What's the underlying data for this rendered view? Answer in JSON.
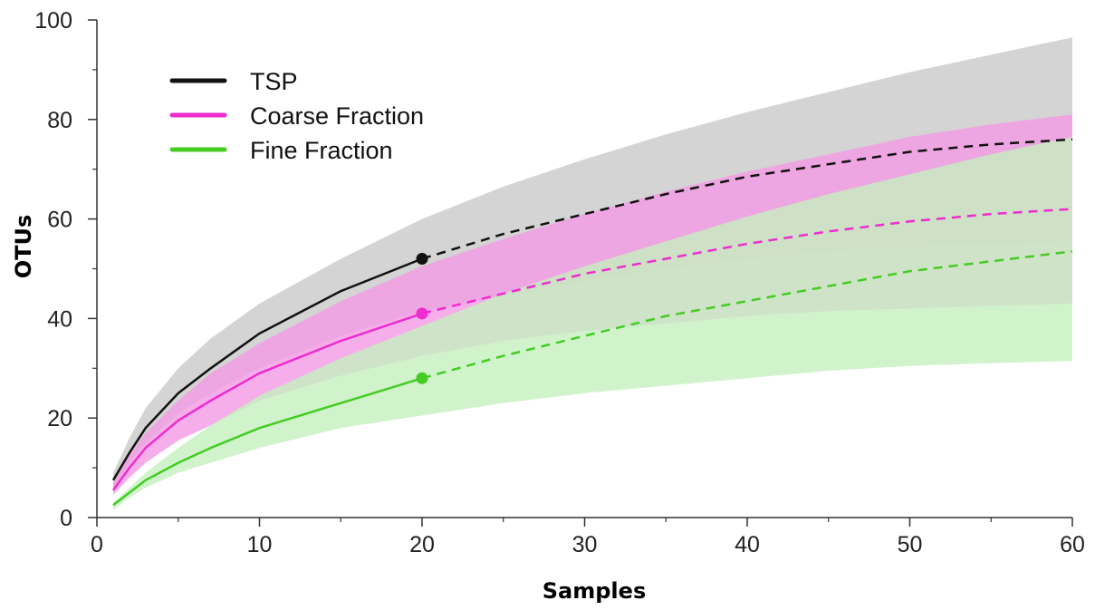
{
  "chart_data": {
    "type": "line",
    "title": "",
    "xlabel": "Samples",
    "ylabel": "OTUs",
    "xlim": [
      0,
      60
    ],
    "ylim": [
      0,
      100
    ],
    "xticks": [
      0,
      10,
      20,
      30,
      40,
      50,
      60
    ],
    "yticks": [
      0,
      20,
      40,
      60,
      80,
      100
    ],
    "grid": false,
    "legend_position": "top-left",
    "observed_until": 20,
    "x": [
      1,
      2,
      3,
      5,
      7,
      10,
      15,
      20,
      25,
      30,
      35,
      40,
      45,
      50,
      55,
      60
    ],
    "series": [
      {
        "name": "TSP",
        "color": "#111111",
        "band_color": "#c9c9c9",
        "values": [
          7.5,
          13,
          18,
          25,
          30,
          37,
          45.5,
          52,
          57,
          61,
          65,
          68.5,
          71,
          73.5,
          75,
          76
        ],
        "upper": [
          9,
          16,
          22,
          30,
          36,
          43,
          52,
          60,
          66.5,
          72,
          77,
          81.5,
          85.5,
          89.5,
          93,
          96.5
        ],
        "lower": [
          6,
          11,
          15,
          21,
          25,
          30,
          36.5,
          41.5,
          44.5,
          47.5,
          50,
          52,
          53.5,
          54.5,
          55,
          55.5
        ]
      },
      {
        "name": "Coarse Fraction",
        "color": "#ee2ccf",
        "band_color": "#f39ae3",
        "values": [
          5.5,
          10,
          14,
          19.5,
          23.5,
          29,
          35.5,
          41,
          45,
          49,
          52,
          55,
          57.5,
          59.5,
          61,
          62
        ],
        "upper": [
          7,
          12.5,
          17,
          23.5,
          29,
          35,
          43.5,
          50.5,
          56,
          61,
          65.5,
          69.5,
          73,
          76.5,
          79,
          81
        ],
        "lower": [
          4.5,
          8,
          11,
          15.5,
          18.5,
          23.5,
          28.5,
          32.5,
          35.5,
          37.5,
          39,
          40.5,
          41.5,
          42,
          42.5,
          43
        ]
      },
      {
        "name": "Fine Fraction",
        "color": "#44cc22",
        "band_color": "#c6f0bf",
        "values": [
          2.5,
          5,
          7.5,
          11,
          14,
          18,
          23,
          28,
          32.5,
          36.5,
          40.5,
          43.5,
          46.5,
          49.5,
          51.5,
          53.5
        ],
        "upper": [
          3,
          6,
          9,
          14,
          18.5,
          24.5,
          32,
          38.5,
          45,
          50.5,
          55.5,
          60.5,
          65,
          69,
          73,
          76.5
        ],
        "lower": [
          1.5,
          4,
          6,
          9,
          11,
          14,
          18,
          20.5,
          23,
          25,
          26.5,
          28,
          29.5,
          30.5,
          31,
          31.5
        ]
      }
    ],
    "endpoints": [
      {
        "series": "TSP",
        "x": 20,
        "y": 52
      },
      {
        "series": "Coarse Fraction",
        "x": 20,
        "y": 41
      },
      {
        "series": "Fine Fraction",
        "x": 20,
        "y": 28
      }
    ]
  }
}
